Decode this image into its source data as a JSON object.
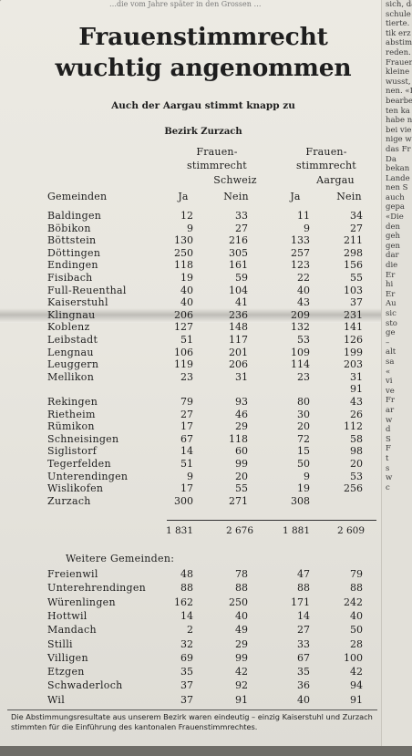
{
  "top_snippet": "…die vom Jahre später in den Grossen …",
  "side_column": [
    "sich, da",
    "schule",
    "tierte.",
    "tik erz",
    "abstimm",
    "reden.",
    "Frauen",
    "kleine",
    "wusst,",
    "nen. «I",
    "bearbe",
    "ten ka",
    "habe n",
    "bei vie",
    "nige w",
    "das Fr",
    "Da",
    "bekan",
    "Lande",
    "nen S",
    "auch",
    "gepa",
    "«Die",
    "den",
    "geh",
    "gen",
    "dar",
    "die",
    "Er",
    "hi",
    "",
    "Er",
    "Au",
    "sic",
    "sto",
    "ge",
    "–",
    "alt",
    "sa",
    "«",
    "vi",
    "ve",
    "Fr",
    "ar",
    "w",
    "d",
    "S",
    "F",
    "",
    "t",
    "s",
    "w",
    "c"
  ],
  "headline": [
    "Frauenstimmrecht",
    "wuchtig angenommen"
  ],
  "subhead": "Auch der Aargau stimmt knapp zu",
  "district": "Bezirk Zurzach",
  "headers": {
    "group1_line1": "Frauen-",
    "group1_line2": "stimmrecht",
    "group1_scope": "Schweiz",
    "group2_line1": "Frauen-",
    "group2_line2": "stimmrecht",
    "group2_scope": "Aargau",
    "gemeinden": "Gemeinden",
    "ja": "Ja",
    "nein": "Nein"
  },
  "rows": [
    {
      "name": "Baldingen",
      "ch_ja": "12",
      "ch_nein": "33",
      "ag_ja": "11",
      "ag_nein": "34"
    },
    {
      "name": "Böbikon",
      "ch_ja": "9",
      "ch_nein": "27",
      "ag_ja": "9",
      "ag_nein": "27"
    },
    {
      "name": "Böttstein",
      "ch_ja": "130",
      "ch_nein": "216",
      "ag_ja": "133",
      "ag_nein": "211"
    },
    {
      "name": "Döttingen",
      "ch_ja": "250",
      "ch_nein": "305",
      "ag_ja": "257",
      "ag_nein": "298"
    },
    {
      "name": "Endingen",
      "ch_ja": "118",
      "ch_nein": "161",
      "ag_ja": "123",
      "ag_nein": "156"
    },
    {
      "name": "Fisibach",
      "ch_ja": "19",
      "ch_nein": "59",
      "ag_ja": "22",
      "ag_nein": "55"
    },
    {
      "name": "Full-Reuenthal",
      "ch_ja": "40",
      "ch_nein": "104",
      "ag_ja": "40",
      "ag_nein": "103"
    },
    {
      "name": "Kaiserstuhl",
      "ch_ja": "40",
      "ch_nein": "41",
      "ag_ja": "43",
      "ag_nein": "37"
    },
    {
      "name": "Klingnau",
      "ch_ja": "206",
      "ch_nein": "236",
      "ag_ja": "209",
      "ag_nein": "231"
    },
    {
      "name": "Koblenz",
      "ch_ja": "127",
      "ch_nein": "148",
      "ag_ja": "132",
      "ag_nein": "141"
    },
    {
      "name": "Leibstadt",
      "ch_ja": "51",
      "ch_nein": "117",
      "ag_ja": "53",
      "ag_nein": "126"
    },
    {
      "name": "Lengnau",
      "ch_ja": "106",
      "ch_nein": "201",
      "ag_ja": "109",
      "ag_nein": "199"
    },
    {
      "name": "Leuggern",
      "ch_ja": "119",
      "ch_nein": "206",
      "ag_ja": "114",
      "ag_nein": "203"
    },
    {
      "name": "Mellikon",
      "ch_ja": "23",
      "ch_nein": "31",
      "ag_ja": "23",
      "ag_nein": "31"
    },
    {
      "name": "",
      "ch_ja": "",
      "ch_nein": "",
      "ag_ja": "",
      "ag_nein": "91"
    },
    {
      "name": "Rekingen",
      "ch_ja": "79",
      "ch_nein": "93",
      "ag_ja": "80",
      "ag_nein": "43"
    },
    {
      "name": "Rietheim",
      "ch_ja": "27",
      "ch_nein": "46",
      "ag_ja": "30",
      "ag_nein": "26"
    },
    {
      "name": "Rümikon",
      "ch_ja": "17",
      "ch_nein": "29",
      "ag_ja": "20",
      "ag_nein": "112"
    },
    {
      "name": "Schneisingen",
      "ch_ja": "67",
      "ch_nein": "118",
      "ag_ja": "72",
      "ag_nein": "58"
    },
    {
      "name": "Siglistorf",
      "ch_ja": "14",
      "ch_nein": "60",
      "ag_ja": "15",
      "ag_nein": "98"
    },
    {
      "name": "Tegerfelden",
      "ch_ja": "51",
      "ch_nein": "99",
      "ag_ja": "50",
      "ag_nein": "20"
    },
    {
      "name": "Unterendingen",
      "ch_ja": "9",
      "ch_nein": "20",
      "ag_ja": "9",
      "ag_nein": "53"
    },
    {
      "name": "Wislikofen",
      "ch_ja": "17",
      "ch_nein": "55",
      "ag_ja": "19",
      "ag_nein": "256"
    },
    {
      "name": "Zurzach",
      "ch_ja": "300",
      "ch_nein": "271",
      "ag_ja": "308",
      "ag_nein": ""
    }
  ],
  "totals": {
    "ch_ja": "1 831",
    "ch_nein": "2 676",
    "ag_ja": "1 881",
    "ag_nein": "2 609"
  },
  "weitere_title": "Weitere Gemeinden:",
  "weitere": [
    {
      "name": "Freienwil",
      "ch_ja": "48",
      "ch_nein": "78",
      "ag_ja": "47",
      "ag_nein": "79"
    },
    {
      "name": "Unterehrendingen",
      "ch_ja": "88",
      "ch_nein": "88",
      "ag_ja": "88",
      "ag_nein": "88"
    },
    {
      "name": "Würenlingen",
      "ch_ja": "162",
      "ch_nein": "250",
      "ag_ja": "171",
      "ag_nein": "242"
    },
    {
      "name": "Hottwil",
      "ch_ja": "14",
      "ch_nein": "40",
      "ag_ja": "14",
      "ag_nein": "40"
    },
    {
      "name": "Mandach",
      "ch_ja": "2",
      "ch_nein": "49",
      "ag_ja": "27",
      "ag_nein": "50"
    },
    {
      "name": "Stilli",
      "ch_ja": "32",
      "ch_nein": "29",
      "ag_ja": "33",
      "ag_nein": "28"
    },
    {
      "name": "Villigen",
      "ch_ja": "69",
      "ch_nein": "99",
      "ag_ja": "67",
      "ag_nein": "100"
    },
    {
      "name": "Etzgen",
      "ch_ja": "35",
      "ch_nein": "42",
      "ag_ja": "35",
      "ag_nein": "42"
    },
    {
      "name": "Schwaderloch",
      "ch_ja": "37",
      "ch_nein": "92",
      "ag_ja": "36",
      "ag_nein": "94"
    },
    {
      "name": "Wil",
      "ch_ja": "37",
      "ch_nein": "91",
      "ag_ja": "40",
      "ag_nein": "91"
    }
  ],
  "caption": "Die Abstimmungsresultate aus unserem Bezirk waren eindeutig – einzig Kaiserstuhl und Zurzach stimmten für die Einführung des kantonalen Frauenstimmrechtes."
}
